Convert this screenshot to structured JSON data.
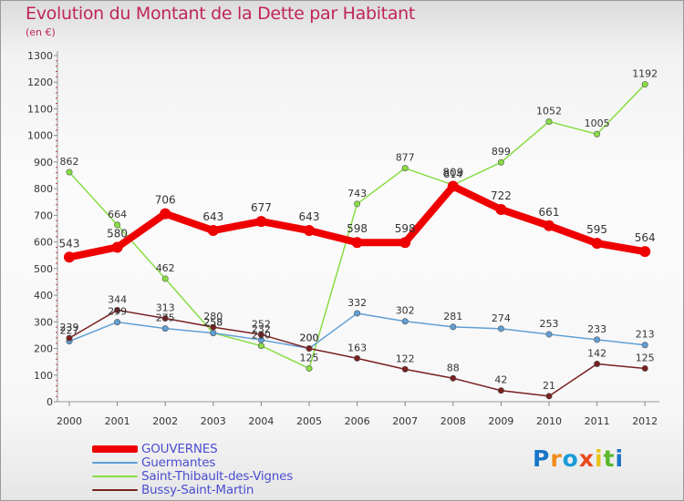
{
  "title": "Evolution du Montant de la Dette par Habitant",
  "subtitle": "(en €)",
  "logo": {
    "text": "Proxiti",
    "colors": [
      "#1a75c9",
      "#f08c1a",
      "#1a9bd6",
      "#e8491d",
      "#e8c41a",
      "#5cb82e",
      "#1a75c9"
    ]
  },
  "chart_data": {
    "type": "line",
    "title": "Evolution du Montant de la Dette par Habitant",
    "subtitle": "(en €)",
    "x": [
      "2000",
      "2001",
      "2002",
      "2003",
      "2004",
      "2005",
      "2006",
      "2007",
      "2008",
      "2009",
      "2010",
      "2011",
      "2012"
    ],
    "ylim": [
      0,
      1300
    ],
    "yticks": [
      "0",
      "100",
      "200",
      "300",
      "400",
      "500",
      "600",
      "700",
      "800",
      "900",
      "1000",
      "1100",
      "1200",
      "1300"
    ],
    "grid": false,
    "legend_position": "bottom-left",
    "series": [
      {
        "name": "GOUVERNES",
        "color": "#ee0000",
        "values": [
          543,
          580,
          706,
          643,
          677,
          643,
          598,
          598,
          809,
          722,
          661,
          595,
          564
        ],
        "labels": [
          "543",
          "580",
          "706",
          "643",
          "677",
          "643",
          "598",
          "598",
          "809",
          "722",
          "661",
          "595",
          "564"
        ]
      },
      {
        "name": "Guermantes",
        "color": "#5f9fd6",
        "values": [
          227,
          299,
          275,
          258,
          232,
          200,
          332,
          302,
          281,
          274,
          253,
          233,
          213
        ],
        "labels": [
          "227",
          "299",
          "275",
          "258",
          "232",
          "200",
          "332",
          "302",
          "281",
          "274",
          "253",
          "233",
          "213"
        ]
      },
      {
        "name": "Saint-Thibault-des-Vignes",
        "color": "#88dd44",
        "values": [
          862,
          664,
          462,
          258,
          210,
          125,
          743,
          877,
          814,
          899,
          1052,
          1005,
          1192
        ],
        "labels": [
          "862",
          "664",
          "462",
          "258",
          "210",
          "125",
          "743",
          "877",
          "814",
          "899",
          "1052",
          "1005",
          "1192"
        ]
      },
      {
        "name": "Bussy-Saint-Martin",
        "color": "#7a2020",
        "values": [
          239,
          344,
          313,
          280,
          252,
          200,
          163,
          122,
          88,
          42,
          21,
          142,
          125
        ],
        "labels": [
          "239",
          "344",
          "313",
          "280",
          "252",
          "200",
          "163",
          "122",
          "88",
          "42",
          "21",
          "142",
          "125"
        ]
      }
    ]
  }
}
